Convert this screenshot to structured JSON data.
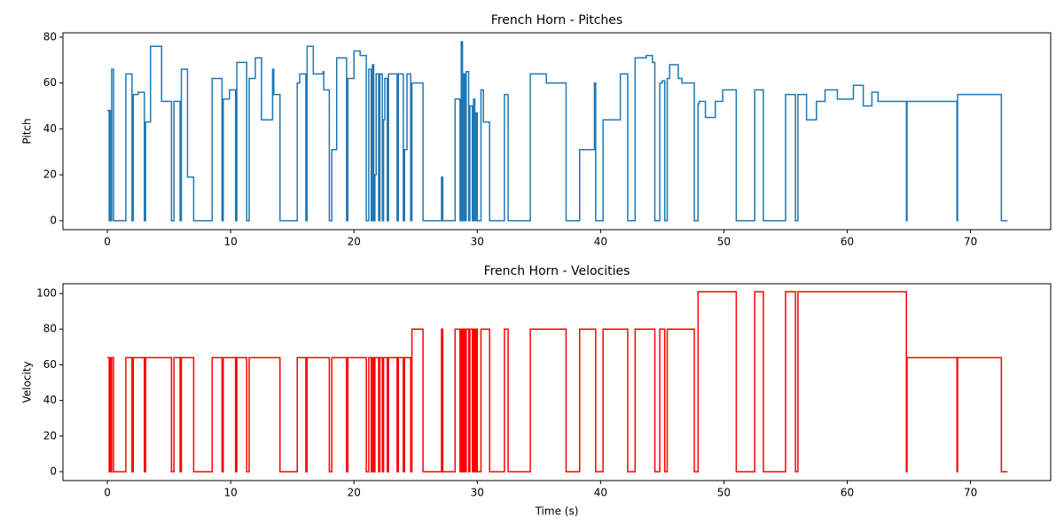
{
  "chart_data": [
    {
      "type": "line",
      "drawstyle": "steps-post",
      "title": "French Horn - Pitches",
      "ylabel": "Pitch",
      "xlim": [
        -3.6,
        76.5
      ],
      "xticks": [
        0,
        10,
        20,
        30,
        40,
        50,
        60,
        70
      ],
      "ylim": [
        -3.9,
        81.9
      ],
      "yticks": [
        0,
        20,
        40,
        60,
        80
      ],
      "x": [
        0,
        0.15,
        0.2,
        0.3,
        0.35,
        0.5,
        1.5,
        2.0,
        2.1,
        2.5,
        3.0,
        3.1,
        3.5,
        4.4,
        5.2,
        5.4,
        5.9,
        6.0,
        6.5,
        7.0,
        8.5,
        9.3,
        9.4,
        9.9,
        10.4,
        10.5,
        11.3,
        11.5,
        12.0,
        12.5,
        13.4,
        13.5,
        14.0,
        15.4,
        15.6,
        16.1,
        16.2,
        16.7,
        17.5,
        17.55,
        18.0,
        18.2,
        18.6,
        19.4,
        19.5,
        20.0,
        20.5,
        21.0,
        21.2,
        21.4,
        21.5,
        21.6,
        21.7,
        21.8,
        22.0,
        22.1,
        22.3,
        22.4,
        22.5,
        22.7,
        22.8,
        23.5,
        23.6,
        24.0,
        24.1,
        24.3,
        24.6,
        24.7,
        25.6,
        27.1,
        27.2,
        28.2,
        28.6,
        28.7,
        28.8,
        28.9,
        29.0,
        29.1,
        29.3,
        29.4,
        29.6,
        29.7,
        29.8,
        29.9,
        30.0,
        30.3,
        30.5,
        31.0,
        32.2,
        32.5,
        34.3,
        35.6,
        37.2,
        38.3,
        39.5,
        39.6,
        40.2,
        41.6,
        42.2,
        42.8,
        43.7,
        44.2,
        44.4,
        44.8,
        45.0,
        45.2,
        45.4,
        45.6,
        46.3,
        46.6,
        47.6,
        47.9,
        48.0,
        48.5,
        49.3,
        49.9,
        51.0,
        52.5,
        53.2,
        55.0,
        55.8,
        56.0,
        56.7,
        57.5,
        58.2,
        59.2,
        60.5,
        61.3,
        62.0,
        62.5,
        64.8,
        64.85,
        68.9,
        68.95,
        72.5,
        73.0
      ],
      "series": [
        {
          "color": "#1f77b4",
          "values": [
            48,
            0,
            48,
            0,
            66,
            0,
            64,
            0,
            55,
            56,
            0,
            43,
            76,
            52,
            0,
            52,
            0,
            66,
            19,
            0,
            62,
            0,
            53,
            57,
            0,
            69,
            0,
            62,
            71,
            44,
            66,
            55,
            0,
            60,
            64,
            0,
            76,
            64,
            65,
            57,
            0,
            31,
            71,
            0,
            62,
            74,
            72,
            0,
            66,
            0,
            68,
            0,
            20,
            64,
            0,
            64,
            0,
            44,
            62,
            0,
            64,
            0,
            64,
            0,
            31,
            64,
            0,
            60,
            0,
            19,
            0,
            53,
            0,
            78,
            0,
            64,
            0,
            65,
            0,
            50,
            0,
            53,
            0,
            47,
            0,
            57,
            43,
            0,
            55,
            0,
            64,
            60,
            0,
            31,
            60,
            0,
            44,
            64,
            0,
            71,
            72,
            69,
            0,
            60,
            61,
            0,
            62,
            68,
            62,
            60,
            0,
            51,
            52,
            45,
            52,
            57,
            0,
            57,
            0,
            55,
            0,
            55,
            44,
            52,
            57,
            53,
            59,
            50,
            56,
            52,
            0,
            52,
            0,
            55,
            0,
            0
          ]
        }
      ]
    },
    {
      "type": "line",
      "drawstyle": "steps-post",
      "title": "French Horn - Velocities",
      "xlabel": "Time (s)",
      "ylabel": "Velocity",
      "xlim": [
        -3.6,
        76.5
      ],
      "xticks": [
        0,
        10,
        20,
        30,
        40,
        50,
        60,
        70
      ],
      "ylim": [
        -5,
        105.5
      ],
      "yticks": [
        0,
        20,
        40,
        60,
        80,
        100
      ],
      "x": [
        0,
        0.15,
        0.2,
        0.3,
        0.35,
        0.5,
        1.5,
        2.0,
        2.1,
        2.5,
        3.0,
        3.1,
        3.5,
        4.4,
        5.2,
        5.4,
        5.9,
        6.0,
        6.5,
        7.0,
        8.5,
        9.3,
        9.4,
        9.9,
        10.4,
        10.5,
        11.3,
        11.5,
        12.0,
        12.5,
        13.4,
        13.5,
        14.0,
        15.4,
        15.6,
        16.1,
        16.2,
        16.7,
        17.5,
        17.55,
        18.0,
        18.2,
        18.6,
        19.4,
        19.5,
        20.0,
        20.5,
        21.0,
        21.2,
        21.4,
        21.5,
        21.6,
        21.7,
        21.8,
        22.0,
        22.1,
        22.3,
        22.4,
        22.5,
        22.7,
        22.8,
        23.5,
        23.6,
        24.0,
        24.1,
        24.3,
        24.6,
        24.7,
        25.6,
        27.1,
        27.2,
        28.2,
        28.6,
        28.7,
        28.8,
        28.9,
        29.0,
        29.1,
        29.3,
        29.4,
        29.6,
        29.7,
        29.8,
        29.9,
        30.0,
        30.3,
        30.5,
        31.0,
        32.2,
        32.5,
        34.3,
        35.6,
        37.2,
        38.3,
        39.5,
        39.6,
        40.2,
        41.6,
        42.2,
        42.8,
        43.7,
        44.2,
        44.4,
        44.8,
        45.0,
        45.2,
        45.4,
        45.6,
        46.3,
        46.6,
        47.6,
        47.9,
        48.0,
        48.5,
        49.3,
        49.9,
        51.0,
        52.5,
        53.2,
        55.0,
        55.8,
        56.0,
        56.7,
        57.5,
        58.2,
        59.2,
        60.5,
        61.3,
        62.0,
        62.5,
        64.8,
        64.85,
        68.9,
        68.95,
        72.5,
        73.0
      ],
      "series": [
        {
          "color": "#ff0000",
          "values": [
            64,
            0,
            64,
            0,
            64,
            0,
            64,
            0,
            64,
            64,
            0,
            64,
            64,
            64,
            0,
            64,
            0,
            64,
            64,
            0,
            64,
            0,
            64,
            64,
            0,
            64,
            0,
            64,
            64,
            64,
            64,
            64,
            0,
            64,
            64,
            0,
            64,
            64,
            64,
            64,
            0,
            64,
            64,
            0,
            64,
            64,
            64,
            0,
            64,
            0,
            64,
            0,
            64,
            64,
            0,
            64,
            0,
            64,
            64,
            0,
            64,
            0,
            64,
            0,
            64,
            64,
            0,
            80,
            0,
            80,
            0,
            80,
            0,
            80,
            0,
            80,
            0,
            80,
            0,
            80,
            0,
            80,
            0,
            80,
            0,
            80,
            80,
            0,
            80,
            0,
            80,
            80,
            0,
            80,
            80,
            0,
            80,
            80,
            0,
            80,
            80,
            80,
            0,
            80,
            80,
            0,
            80,
            80,
            80,
            80,
            0,
            101,
            101,
            101,
            101,
            101,
            0,
            101,
            0,
            101,
            0,
            101,
            101,
            101,
            101,
            101,
            101,
            101,
            101,
            101,
            0,
            64,
            0,
            64,
            0,
            0
          ]
        }
      ]
    }
  ]
}
